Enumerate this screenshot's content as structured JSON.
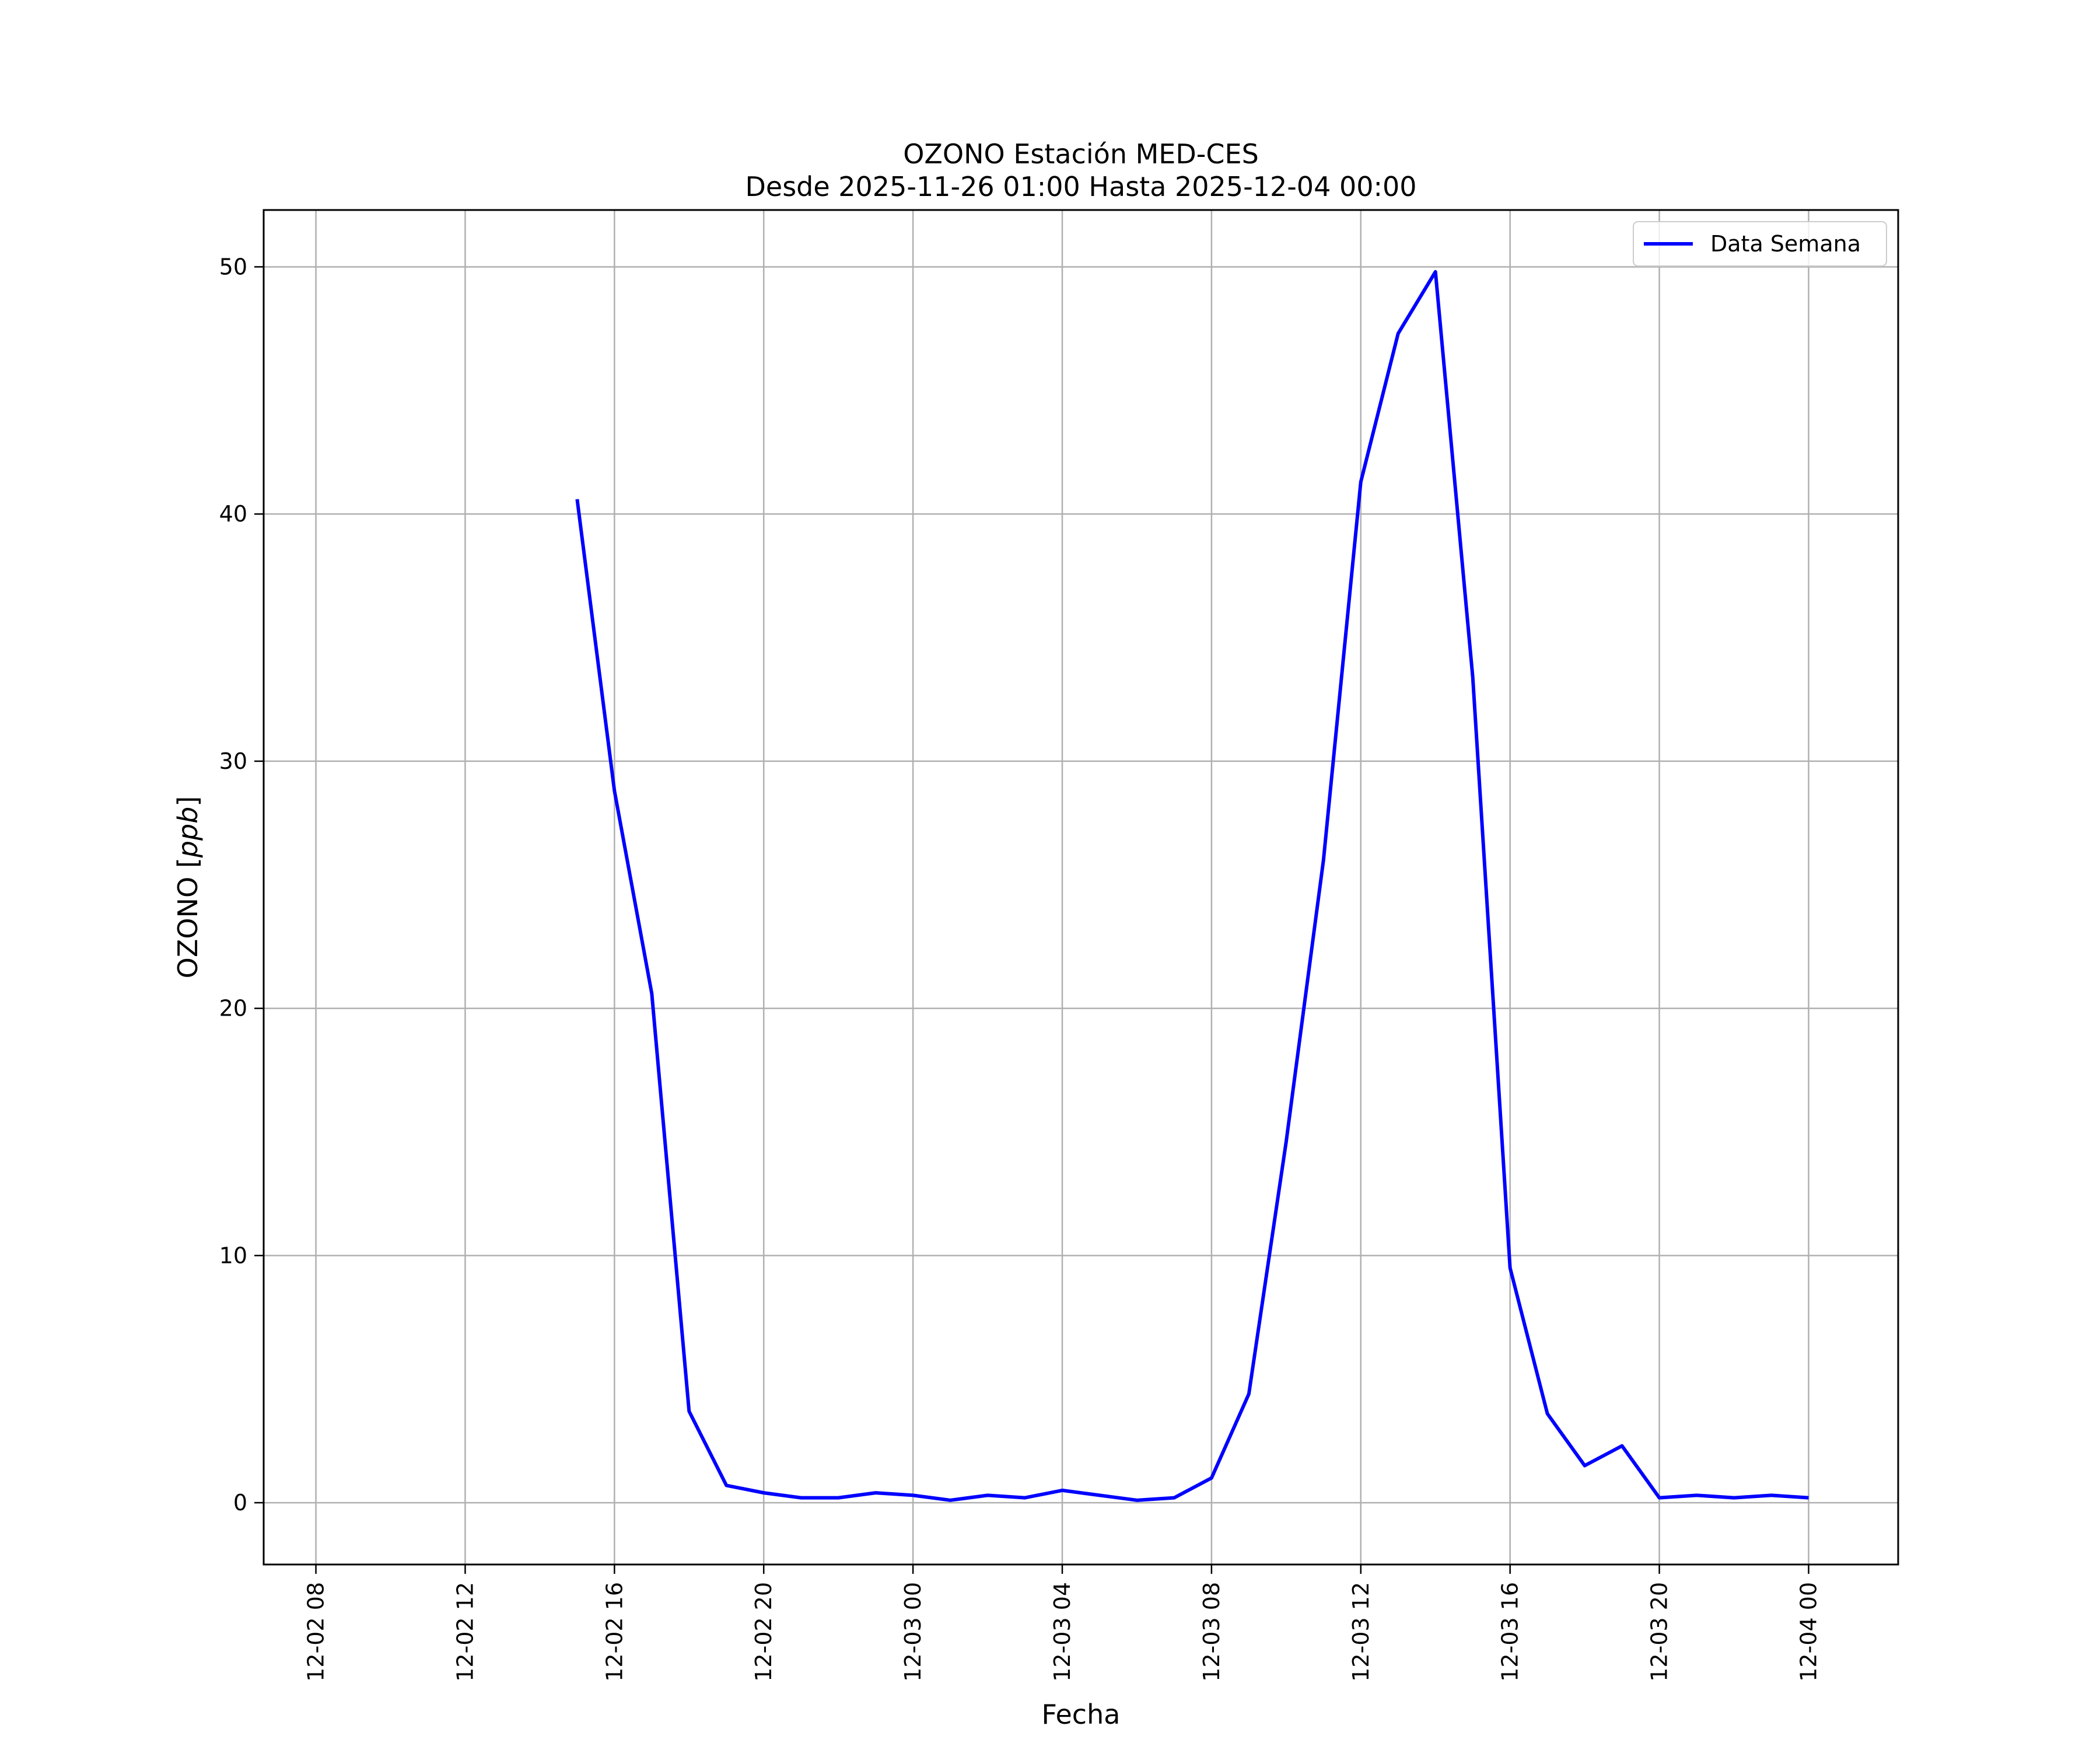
{
  "chart_data": {
    "type": "line",
    "title": "OZONO Estación MED-CES",
    "subtitle": "Desde 2025-11-26 01:00 Hasta 2025-12-04 00:00",
    "xlabel": "Fecha",
    "ylabel_prefix": "OZONO [",
    "ylabel_unit": "ppb",
    "ylabel_suffix": "]",
    "xlim": [
      "2025-12-02 06:36",
      "2025-12-04 02:24"
    ],
    "ylim": [
      -2.5,
      52.3
    ],
    "x_ticks": [
      {
        "value": "2025-12-02 08:00",
        "label": "12-02 08"
      },
      {
        "value": "2025-12-02 12:00",
        "label": "12-02 12"
      },
      {
        "value": "2025-12-02 16:00",
        "label": "12-02 16"
      },
      {
        "value": "2025-12-02 20:00",
        "label": "12-02 20"
      },
      {
        "value": "2025-12-03 00:00",
        "label": "12-03 00"
      },
      {
        "value": "2025-12-03 04:00",
        "label": "12-03 04"
      },
      {
        "value": "2025-12-03 08:00",
        "label": "12-03 08"
      },
      {
        "value": "2025-12-03 12:00",
        "label": "12-03 12"
      },
      {
        "value": "2025-12-03 16:00",
        "label": "12-03 16"
      },
      {
        "value": "2025-12-03 20:00",
        "label": "12-03 20"
      },
      {
        "value": "2025-12-04 00:00",
        "label": "12-04 00"
      }
    ],
    "y_ticks": [
      {
        "value": 0,
        "label": "0"
      },
      {
        "value": 10,
        "label": "10"
      },
      {
        "value": 20,
        "label": "20"
      },
      {
        "value": 30,
        "label": "30"
      },
      {
        "value": 40,
        "label": "40"
      },
      {
        "value": 50,
        "label": "50"
      }
    ],
    "grid": true,
    "legend_position": "top-right",
    "series": [
      {
        "name": "Data Semana",
        "color": "#0000ff",
        "x": [
          "2025-12-02 15:00",
          "2025-12-02 16:00",
          "2025-12-02 17:00",
          "2025-12-02 18:00",
          "2025-12-02 19:00",
          "2025-12-02 20:00",
          "2025-12-02 21:00",
          "2025-12-02 22:00",
          "2025-12-02 23:00",
          "2025-12-03 00:00",
          "2025-12-03 01:00",
          "2025-12-03 02:00",
          "2025-12-03 03:00",
          "2025-12-03 04:00",
          "2025-12-03 05:00",
          "2025-12-03 06:00",
          "2025-12-03 07:00",
          "2025-12-03 08:00",
          "2025-12-03 09:00",
          "2025-12-03 10:00",
          "2025-12-03 11:00",
          "2025-12-03 12:00",
          "2025-12-03 13:00",
          "2025-12-03 14:00",
          "2025-12-03 15:00",
          "2025-12-03 16:00",
          "2025-12-03 17:00",
          "2025-12-03 18:00",
          "2025-12-03 19:00",
          "2025-12-03 20:00",
          "2025-12-03 21:00",
          "2025-12-03 22:00",
          "2025-12-03 23:00",
          "2025-12-04 00:00"
        ],
        "y": [
          40.6,
          28.8,
          20.6,
          3.7,
          0.7,
          0.4,
          0.2,
          0.2,
          0.4,
          0.3,
          0.1,
          0.3,
          0.2,
          0.5,
          0.3,
          0.1,
          0.2,
          1.0,
          4.4,
          14.6,
          26.0,
          41.3,
          47.3,
          49.8,
          33.4,
          9.5,
          3.6,
          1.5,
          2.3,
          0.2,
          0.3,
          0.2,
          0.3,
          0.2
        ]
      }
    ]
  }
}
